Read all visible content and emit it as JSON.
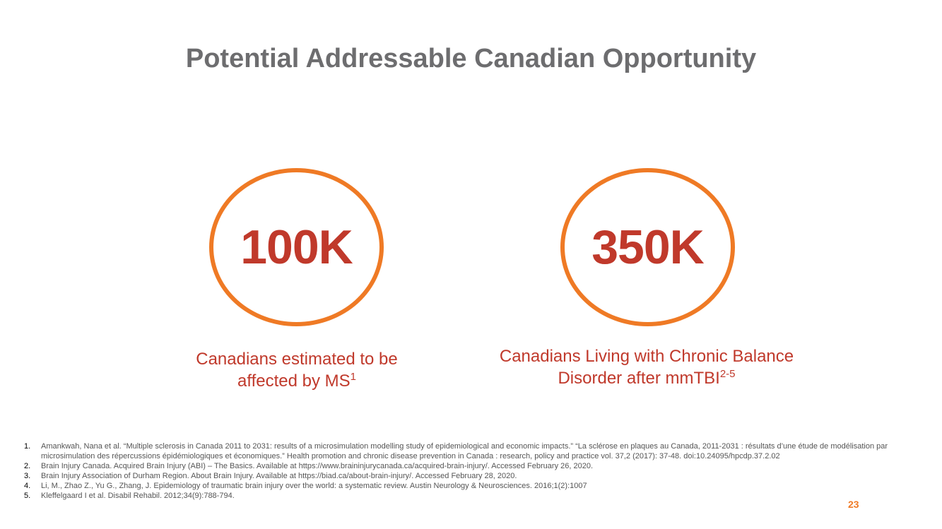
{
  "slide": {
    "title": "Potential Addressable Canadian Opportunity",
    "page_number": "23"
  },
  "stats": [
    {
      "value": "100K",
      "caption_line1": "Canadians estimated to be",
      "caption_line2": "affected by MS",
      "caption_sup": "1"
    },
    {
      "value": "350K",
      "caption_line1": "Canadians Living with Chronic Balance",
      "caption_line2": "Disorder after mmTBI",
      "caption_sup": "2-5"
    }
  ],
  "references": [
    {
      "num": "1.",
      "text": "Amankwah, Nana et al. “Multiple sclerosis in Canada 2011 to 2031: results of a microsimulation modelling study of epidemiological and economic impacts.” “La sclérose en plaques au Canada, 2011-2031 : résultats d’une étude de modélisation par microsimulation des répercussions épidémiologiques et économiques.” Health promotion and chronic disease prevention in Canada : research, policy and practice vol. 37,2 (2017): 37-48. doi:10.24095/hpcdp.37.2.02"
    },
    {
      "num": "2.",
      "text": "Brain Injury Canada. Acquired Brain Injury (ABI) – The Basics. Available at https://www.braininjurycanada.ca/acquired-brain-injury/. Accessed February 26, 2020."
    },
    {
      "num": "3.",
      "text": "Brain Injury Association of Durham Region. About Brain Injury. Available at https://biad.ca/about-brain-injury/. Accessed February 28, 2020."
    },
    {
      "num": "4.",
      "text": "Li, M., Zhao Z., Yu G., Zhang, J. Epidemiology of traumatic brain injury over the world: a systematic review. Austin Neurology & Neurosciences. 2016;1(2):1007"
    },
    {
      "num": "5.",
      "text": "Kleffelgaard I et al. Disabil Rehabil. 2012;34(9):788-794."
    }
  ],
  "colors": {
    "title": "#6d6d6f",
    "accent_orange": "#ef7a25",
    "stat_red": "#c0392b"
  }
}
